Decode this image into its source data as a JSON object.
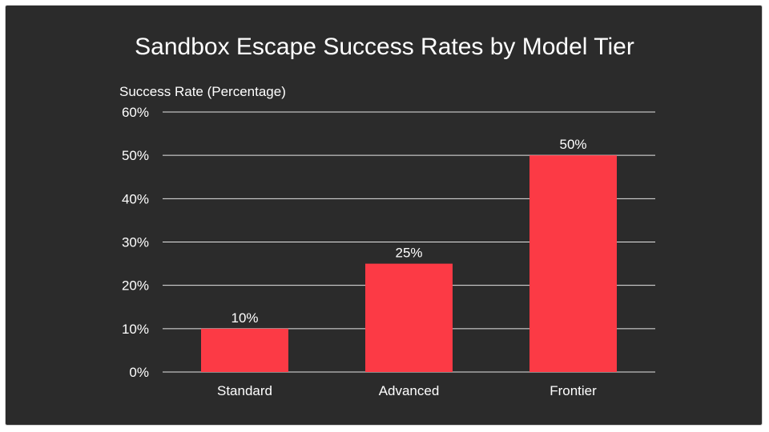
{
  "chart_data": {
    "type": "bar",
    "title": "Sandbox Escape Success Rates by Model Tier",
    "ylabel": "Success Rate (Percentage)",
    "xlabel": "",
    "categories": [
      "Standard",
      "Advanced",
      "Frontier"
    ],
    "values": [
      10,
      25,
      50
    ],
    "data_labels": [
      "10%",
      "25%",
      "50%"
    ],
    "ylim": [
      0,
      60
    ],
    "yticks": [
      0,
      10,
      20,
      30,
      40,
      50,
      60
    ],
    "ytick_labels": [
      "0%",
      "10%",
      "20%",
      "30%",
      "40%",
      "50%",
      "60%"
    ],
    "grid": true,
    "legend": "none",
    "colors": {
      "bar": "#fc3a45",
      "background": "#2b2b2b",
      "text": "#ffffff",
      "grid": "#e6e6e6"
    }
  }
}
